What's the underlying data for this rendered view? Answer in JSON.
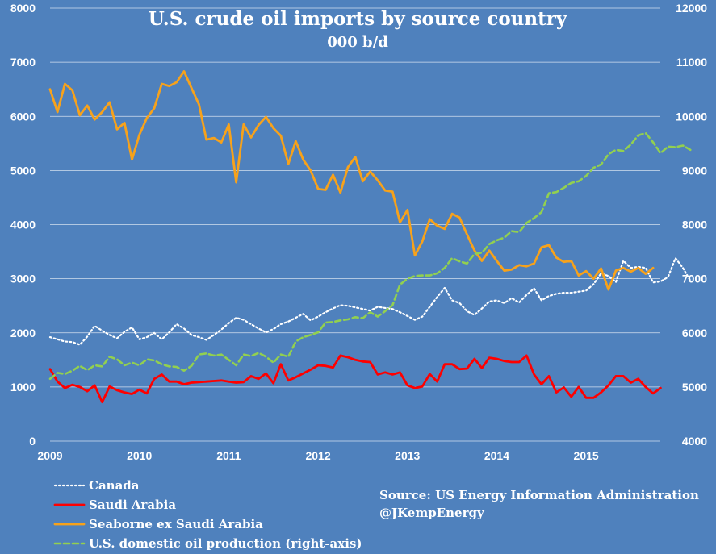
{
  "colors": {
    "background": "#4f81bd",
    "canada": "#ffffff",
    "saudi": "#ff0000",
    "seaborne": "#f7a21b",
    "production": "#92d050",
    "grid": "#ffffff"
  },
  "source_lines": [
    "Source: US Energy Information Administration",
    "@JKempEnergy"
  ],
  "chart_data": {
    "type": "line",
    "title": "U.S. crude oil imports by source country",
    "subtitle": "000 b/d",
    "x_ticks": [
      "2009",
      "2010",
      "2011",
      "2012",
      "2013",
      "2014",
      "2015"
    ],
    "xlim": [
      2009.0,
      2015.83
    ],
    "y_left": {
      "min": 0,
      "max": 8000,
      "ticks": [
        "0",
        "1000",
        "2000",
        "3000",
        "4000",
        "5000",
        "6000",
        "7000",
        "8000"
      ]
    },
    "y_right": {
      "min": 4000,
      "max": 12000,
      "ticks": [
        "4000",
        "5000",
        "6000",
        "7000",
        "8000",
        "9000",
        "10000",
        "11000",
        "12000"
      ]
    },
    "grid": true,
    "legend_position": "bottom-left",
    "x_start_year": 2009,
    "months_per_point": 1,
    "series": [
      {
        "name": "Canada",
        "axis": "left",
        "style": "dotted",
        "values": [
          1920,
          1880,
          1840,
          1830,
          1780,
          1930,
          2130,
          2040,
          1960,
          1900,
          2020,
          2100,
          1880,
          1920,
          2000,
          1880,
          2010,
          2160,
          2080,
          1960,
          1920,
          1870,
          1960,
          2060,
          2180,
          2280,
          2240,
          2160,
          2080,
          2010,
          2070,
          2160,
          2210,
          2280,
          2350,
          2230,
          2300,
          2380,
          2450,
          2510,
          2500,
          2470,
          2440,
          2410,
          2480,
          2460,
          2440,
          2380,
          2310,
          2240,
          2300,
          2480,
          2660,
          2830,
          2600,
          2550,
          2400,
          2330,
          2450,
          2580,
          2600,
          2550,
          2640,
          2560,
          2700,
          2820,
          2600,
          2680,
          2720,
          2740,
          2740,
          2760,
          2780,
          2900,
          3100,
          3050,
          2940,
          3330,
          3200,
          3220,
          3200,
          2930,
          2950,
          3030,
          3380,
          3200,
          2960
        ]
      },
      {
        "name": "Saudi Arabia",
        "axis": "left",
        "style": "solid",
        "values": [
          1330,
          1100,
          980,
          1040,
          1000,
          920,
          1030,
          720,
          1010,
          940,
          900,
          870,
          950,
          880,
          1150,
          1230,
          1100,
          1100,
          1050,
          1080,
          1090,
          1100,
          1110,
          1120,
          1100,
          1080,
          1090,
          1200,
          1150,
          1250,
          1070,
          1420,
          1120,
          1180,
          1250,
          1320,
          1400,
          1390,
          1360,
          1580,
          1550,
          1500,
          1470,
          1460,
          1230,
          1270,
          1230,
          1270,
          1030,
          980,
          1010,
          1240,
          1100,
          1420,
          1420,
          1330,
          1340,
          1520,
          1350,
          1540,
          1520,
          1480,
          1460,
          1460,
          1580,
          1230,
          1050,
          1200,
          900,
          990,
          820,
          1000,
          800,
          800,
          900,
          1030,
          1200,
          1200,
          1080,
          1150,
          1000,
          880,
          980
        ]
      },
      {
        "name": "Seaborne ex Saudi Arabia",
        "axis": "left",
        "style": "solid",
        "values": [
          6500,
          6080,
          6600,
          6480,
          6020,
          6200,
          5940,
          6080,
          6260,
          5760,
          5880,
          5200,
          5660,
          5970,
          6150,
          6600,
          6560,
          6630,
          6830,
          6520,
          6220,
          5570,
          5600,
          5520,
          5850,
          4780,
          5850,
          5610,
          5840,
          5990,
          5780,
          5640,
          5120,
          5540,
          5200,
          5000,
          4660,
          4640,
          4920,
          4590,
          5060,
          5250,
          4800,
          4980,
          4820,
          4630,
          4610,
          4040,
          4270,
          3430,
          3690,
          4100,
          3980,
          3920,
          4200,
          4130,
          3820,
          3520,
          3330,
          3520,
          3330,
          3150,
          3170,
          3250,
          3230,
          3280,
          3580,
          3620,
          3390,
          3310,
          3330,
          3060,
          3140,
          3000,
          3190,
          2800,
          3150,
          3200,
          3130,
          3200,
          3090,
          3200
        ]
      },
      {
        "name": "U.S. domestic oil production (right-axis)",
        "axis": "right",
        "style": "dashed",
        "values": [
          5150,
          5260,
          5240,
          5300,
          5390,
          5310,
          5400,
          5380,
          5560,
          5510,
          5400,
          5450,
          5400,
          5510,
          5490,
          5420,
          5380,
          5370,
          5300,
          5390,
          5600,
          5620,
          5580,
          5600,
          5500,
          5400,
          5600,
          5570,
          5630,
          5560,
          5450,
          5600,
          5560,
          5840,
          5920,
          5960,
          6010,
          6190,
          6200,
          6230,
          6250,
          6290,
          6270,
          6380,
          6300,
          6400,
          6510,
          6890,
          7000,
          7050,
          7060,
          7060,
          7100,
          7200,
          7380,
          7320,
          7280,
          7460,
          7480,
          7640,
          7710,
          7760,
          7880,
          7860,
          8030,
          8120,
          8230,
          8580,
          8600,
          8680,
          8770,
          8800,
          8900,
          9050,
          9110,
          9300,
          9380,
          9360,
          9480,
          9650,
          9690,
          9520,
          9320,
          9440,
          9430,
          9460,
          9380
        ]
      }
    ]
  }
}
